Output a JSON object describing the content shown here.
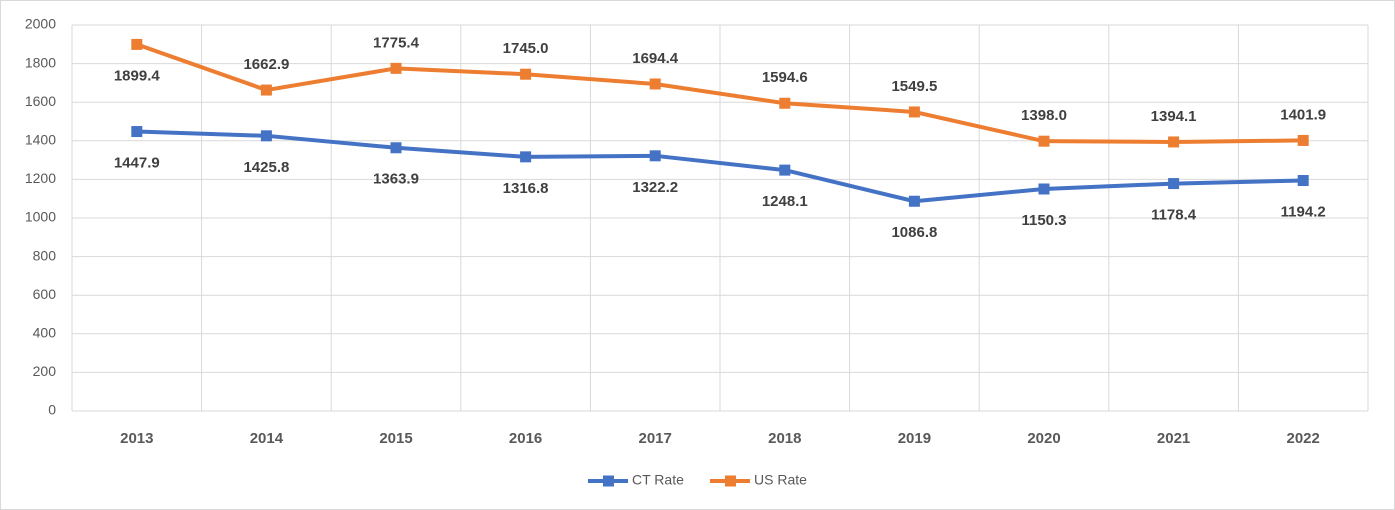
{
  "chart_data": {
    "type": "line",
    "categories": [
      "2013",
      "2014",
      "2015",
      "2016",
      "2017",
      "2018",
      "2019",
      "2020",
      "2021",
      "2022"
    ],
    "series": [
      {
        "name": "CT Rate",
        "color": "#4472c4",
        "values": [
          1447.9,
          1425.8,
          1363.9,
          1316.8,
          1322.2,
          1248.1,
          1086.8,
          1150.3,
          1178.4,
          1194.2
        ],
        "value_labels": [
          "1447.9",
          "1425.8",
          "1363.9",
          "1316.8",
          "1322.2",
          "1248.1",
          "1086.8",
          "1150.3",
          "1178.4",
          "1194.2"
        ]
      },
      {
        "name": "US Rate",
        "color": "#ed7d31",
        "values": [
          1899.4,
          1662.9,
          1775.4,
          1745.0,
          1694.4,
          1594.6,
          1549.5,
          1398.0,
          1394.1,
          1401.9
        ],
        "value_labels": [
          "1899.4",
          "1662.9",
          "1775.4",
          "1745.0",
          "1694.4",
          "1594.6",
          "1549.5",
          "1398.0",
          "1394.1",
          "1401.9"
        ]
      }
    ],
    "ylim": [
      0,
      2000
    ],
    "yticks": [
      0,
      200,
      400,
      600,
      800,
      1000,
      1200,
      1400,
      1600,
      1800,
      2000
    ],
    "grid": true,
    "legend": "bottom"
  }
}
